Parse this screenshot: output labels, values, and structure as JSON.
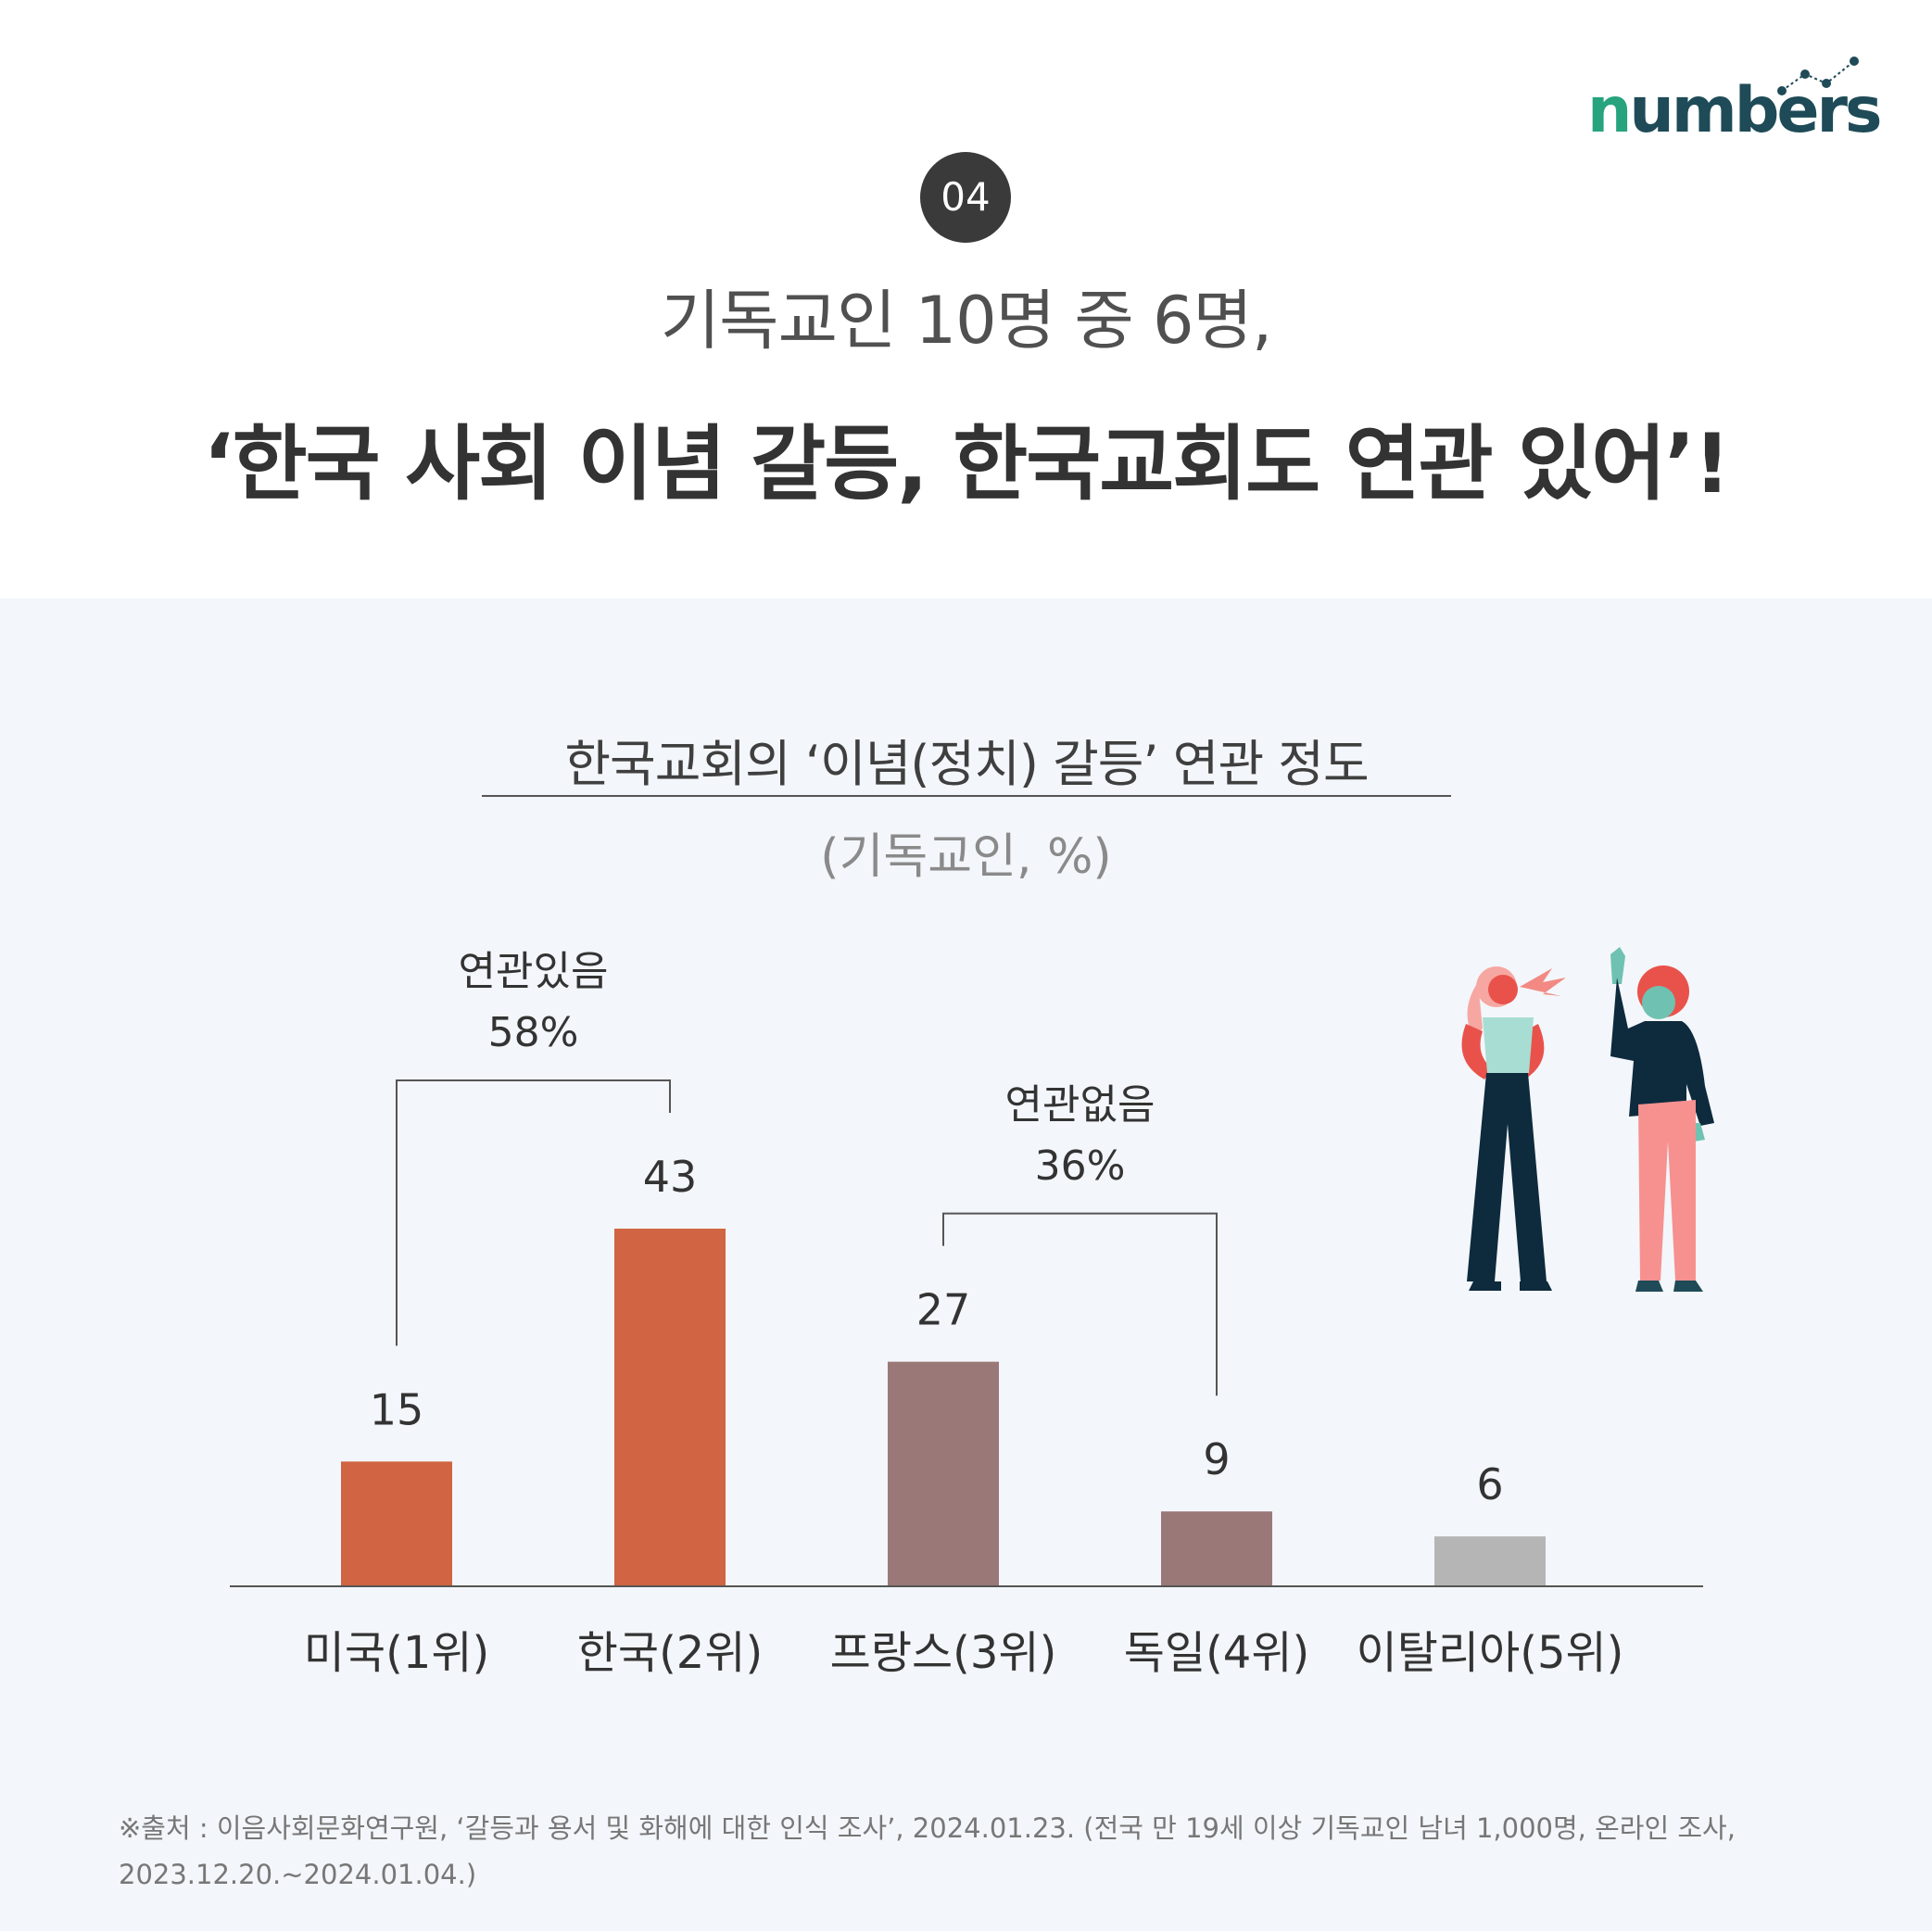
{
  "brand": {
    "logo_text": "numbers"
  },
  "header": {
    "badge": "04",
    "subtitle": "기독교인 10명 중 6명,",
    "title": "‘한국 사회 이념 갈등, 한국교회도 연관 있어’!"
  },
  "chart_data": {
    "type": "bar",
    "title": "한국교회의 ‘이념(정치) 갈등’ 연관 정도",
    "subtitle": "(기독교인, %)",
    "categories": [
      "미국(1위)",
      "한국(2위)",
      "프랑스(3위)",
      "독일(4위)",
      "이탈리아(5위)"
    ],
    "values": [
      15,
      43,
      27,
      9,
      6
    ],
    "colors": [
      "#d06443",
      "#d06443",
      "#9a7878",
      "#9a7878",
      "#b5b5b5"
    ],
    "groups": [
      {
        "label": "연관있음",
        "value": "58%",
        "from": 0,
        "to": 1
      },
      {
        "label": "연관없음",
        "value": "36%",
        "from": 2,
        "to": 3
      }
    ],
    "ylim": [
      0,
      43
    ],
    "grid": false,
    "legend": "none"
  },
  "source": "※출처 : 이음사회문화연구원, ‘갈등과 용서 및 화해에 대한 인식 조사’, 2024.01.23. (전국 만 19세 이상 기독교인 남녀 1,000명, 온라인 조사, 2023.12.20.~2024.01.04.)"
}
